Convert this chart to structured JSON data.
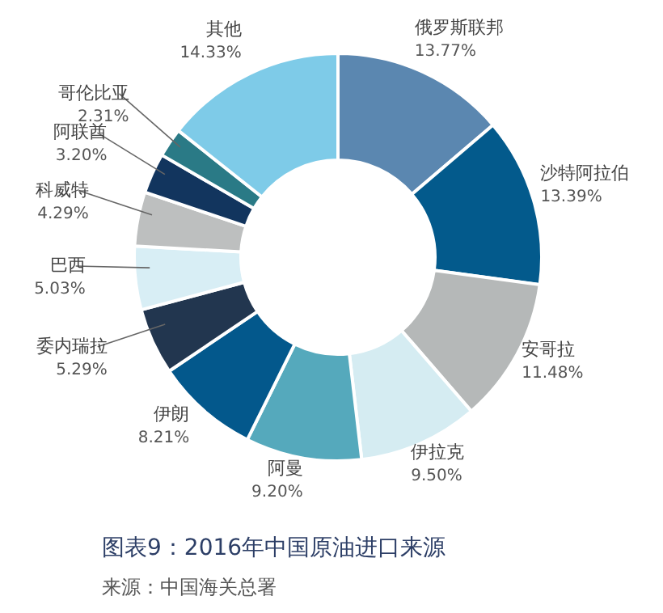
{
  "chart_data": {
    "type": "donut",
    "title": "图表9：2016年中国原油进口来源",
    "annotations": [
      "来源：中国海关总署"
    ],
    "categories": [
      "俄罗斯联邦",
      "沙特阿拉伯",
      "安哥拉",
      "伊拉克",
      "阿曼",
      "伊朗",
      "委内瑞拉",
      "巴西",
      "科威特",
      "阿联酋",
      "哥伦比亚",
      "其他"
    ],
    "values": [
      13.77,
      13.39,
      11.48,
      9.5,
      9.2,
      8.21,
      5.29,
      5.03,
      4.29,
      3.2,
      2.31,
      14.33
    ],
    "value_labels": [
      "13.77%",
      "13.39%",
      "11.48%",
      "9.50%",
      "9.20%",
      "8.21%",
      "5.29%",
      "5.03%",
      "4.29%",
      "3.20%",
      "2.31%",
      "14.33%"
    ],
    "colors": [
      "#5b87b0",
      "#035a8c",
      "#b5b8b8",
      "#d5ecf2",
      "#55a9bc",
      "#03588c",
      "#22364f",
      "#d8eef5",
      "#bdbfbf",
      "#12355e",
      "#2a7a86",
      "#7ecbe8"
    ]
  }
}
